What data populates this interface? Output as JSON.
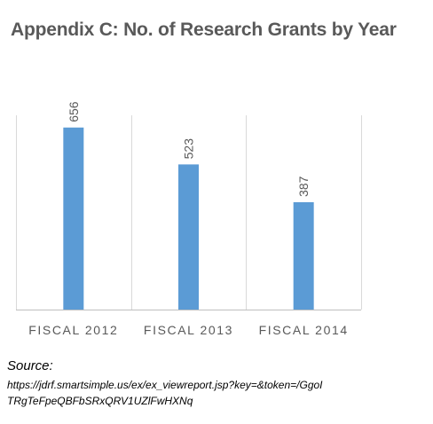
{
  "chart_data": {
    "type": "bar",
    "title": "Appendix C:  No. of Research Grants by Year",
    "categories": [
      "FISCAL 2012",
      "FISCAL 2013",
      "FISCAL 2014"
    ],
    "values": [
      656,
      523,
      387
    ],
    "data_labels": [
      "656",
      "523",
      "387"
    ],
    "xlabel": "",
    "ylabel": "",
    "ylim": [
      0,
      700
    ],
    "grid": "vertical-category-dividers",
    "legend": "none",
    "bar_color": "#5B9BD5"
  },
  "source": {
    "label": "Source:",
    "line1": "https://jdrf.smartsimple.us/ex/ex_viewreport.jsp?key=&token=/GgoI",
    "line2": "TRgTeFpeQBFbSRxQRV1UZlFwHXNq"
  }
}
